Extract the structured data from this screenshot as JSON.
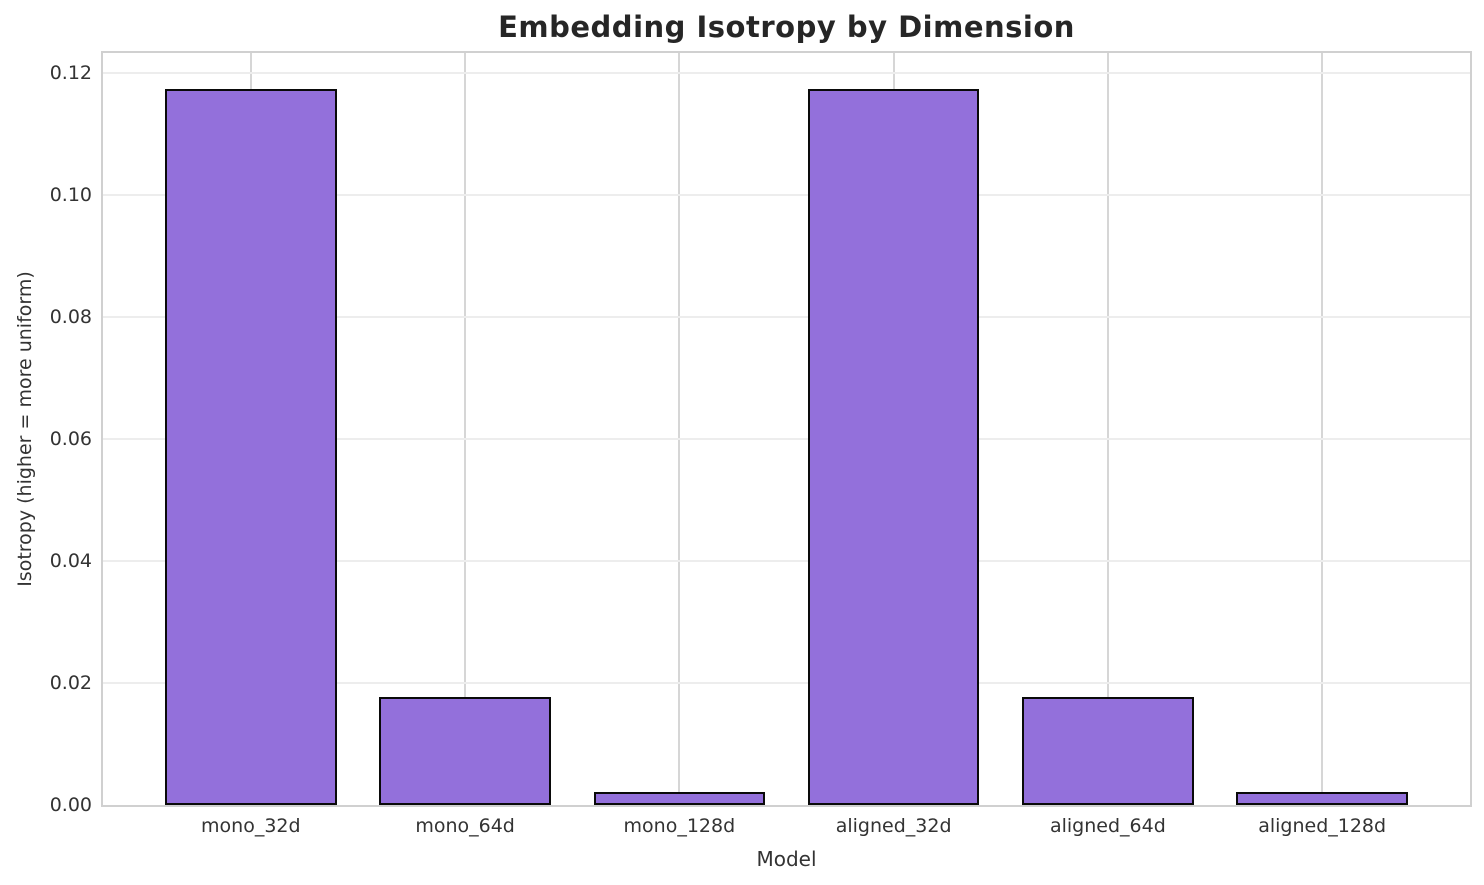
{
  "figure": {
    "background": "#ffffff",
    "text_color": "#333333",
    "title_color": "#262626"
  },
  "chart_data": {
    "type": "bar",
    "title": "Embedding Isotropy by Dimension",
    "xlabel": "Model",
    "ylabel": "Isotropy (higher = more uniform)",
    "categories": [
      "mono_32d",
      "mono_64d",
      "mono_128d",
      "aligned_32d",
      "aligned_64d",
      "aligned_128d"
    ],
    "values": [
      0.1174,
      0.0177,
      0.0021,
      0.1174,
      0.0177,
      0.0021
    ],
    "ylim": [
      0,
      0.1233
    ],
    "yticks": [
      0,
      0.02,
      0.04,
      0.06,
      0.08,
      0.1,
      0.12
    ],
    "ytick_labels": [
      "0.00",
      "0.02",
      "0.04",
      "0.06",
      "0.08",
      "0.10",
      "0.12"
    ],
    "xlim": [
      -0.69,
      5.69
    ],
    "bar_width": 0.8,
    "grid": "both",
    "legend": "none",
    "bar_color": "#9370DB",
    "bar_edge_color": "#0a0a0a",
    "gridline_h_color": "#ededed",
    "gridline_v_color": "#d6d6d6",
    "spine_color": "#d0d0d0"
  }
}
